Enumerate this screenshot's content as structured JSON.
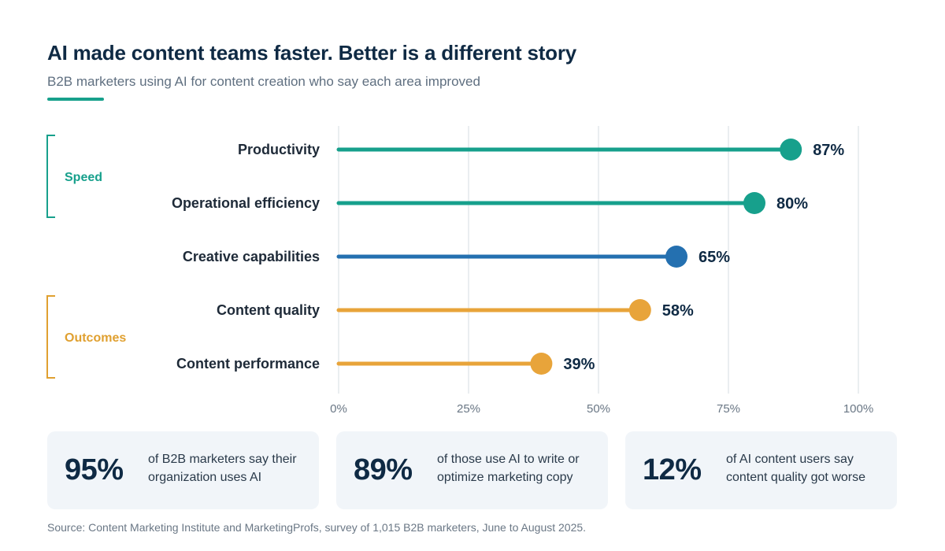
{
  "header": {
    "title": "AI made content teams faster. Better is a different story",
    "subtitle": "B2B marketers using AI for content creation who say each area improved"
  },
  "groups": [
    {
      "label": "Speed",
      "color": "#17a08c"
    },
    {
      "label": "Outcomes",
      "color": "#e0a030"
    }
  ],
  "chart_data": {
    "type": "lollipop",
    "categories": [
      "Productivity",
      "Operational efficiency",
      "Creative capabilities",
      "Content quality",
      "Content performance"
    ],
    "values": [
      87,
      80,
      65,
      58,
      39
    ],
    "value_labels": [
      "87%",
      "80%",
      "65%",
      "58%",
      "39%"
    ],
    "colors": [
      "#17a08c",
      "#17a08c",
      "#2470b0",
      "#e8a43a",
      "#e8a43a"
    ],
    "x_ticks": [
      0,
      25,
      50,
      75,
      100
    ],
    "x_tick_labels": [
      "0%",
      "25%",
      "50%",
      "75%",
      "100%"
    ],
    "xlim": [
      0,
      100
    ],
    "grid": true
  },
  "stats": [
    {
      "value": "95%",
      "desc": "of B2B marketers say their organization uses AI"
    },
    {
      "value": "89%",
      "desc": "of those use AI to write or optimize marketing copy"
    },
    {
      "value": "12%",
      "desc": "of AI content users say content quality got worse"
    }
  ],
  "footer": {
    "source": "Source: Content Marketing Institute and MarketingProfs, survey of 1,015 B2B marketers, June to August 2025."
  }
}
